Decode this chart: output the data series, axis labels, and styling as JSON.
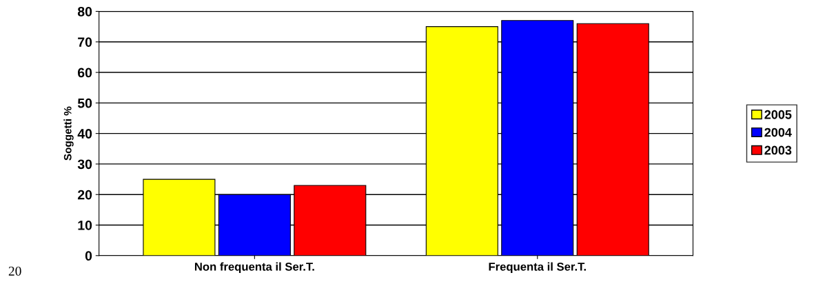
{
  "chart_data": {
    "type": "bar",
    "ylabel": "Soggetti %",
    "categories": [
      "Non frequenta il Ser.T.",
      "Frequenta il Ser.T."
    ],
    "series": [
      {
        "name": "2005",
        "color": "#ffff00",
        "values": [
          25,
          75
        ]
      },
      {
        "name": "2004",
        "color": "#0000ff",
        "values": [
          20,
          77
        ]
      },
      {
        "name": "2003",
        "color": "#ff0000",
        "values": [
          23,
          76
        ]
      }
    ],
    "ylim": [
      0,
      80
    ],
    "yticks": [
      0,
      10,
      20,
      30,
      40,
      50,
      60,
      70,
      80
    ],
    "grid": "y",
    "legend": "right",
    "annotations": [
      "20"
    ]
  }
}
